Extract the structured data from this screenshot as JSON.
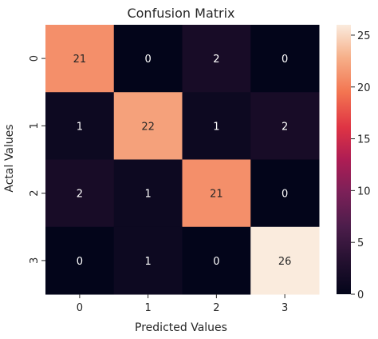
{
  "chart_data": {
    "type": "heatmap",
    "title": "Confusion Matrix",
    "xlabel": "Predicted Values",
    "ylabel": "Actal Values",
    "x_categories": [
      "0",
      "1",
      "2",
      "3"
    ],
    "y_categories": [
      "0",
      "1",
      "2",
      "3"
    ],
    "values": [
      [
        21,
        0,
        2,
        0
      ],
      [
        1,
        22,
        1,
        2
      ],
      [
        2,
        1,
        21,
        0
      ],
      [
        0,
        1,
        0,
        26
      ]
    ],
    "colorbar": {
      "range": [
        0,
        26
      ],
      "ticks": [
        "0",
        "5",
        "10",
        "15",
        "20",
        "25"
      ],
      "tick_values": [
        0,
        5,
        10,
        15,
        20,
        25
      ]
    },
    "colormap": "rocket",
    "colors": {
      "text_light": "#ffffff",
      "text_dark": "#262626",
      "axis_text": "#262626"
    }
  }
}
